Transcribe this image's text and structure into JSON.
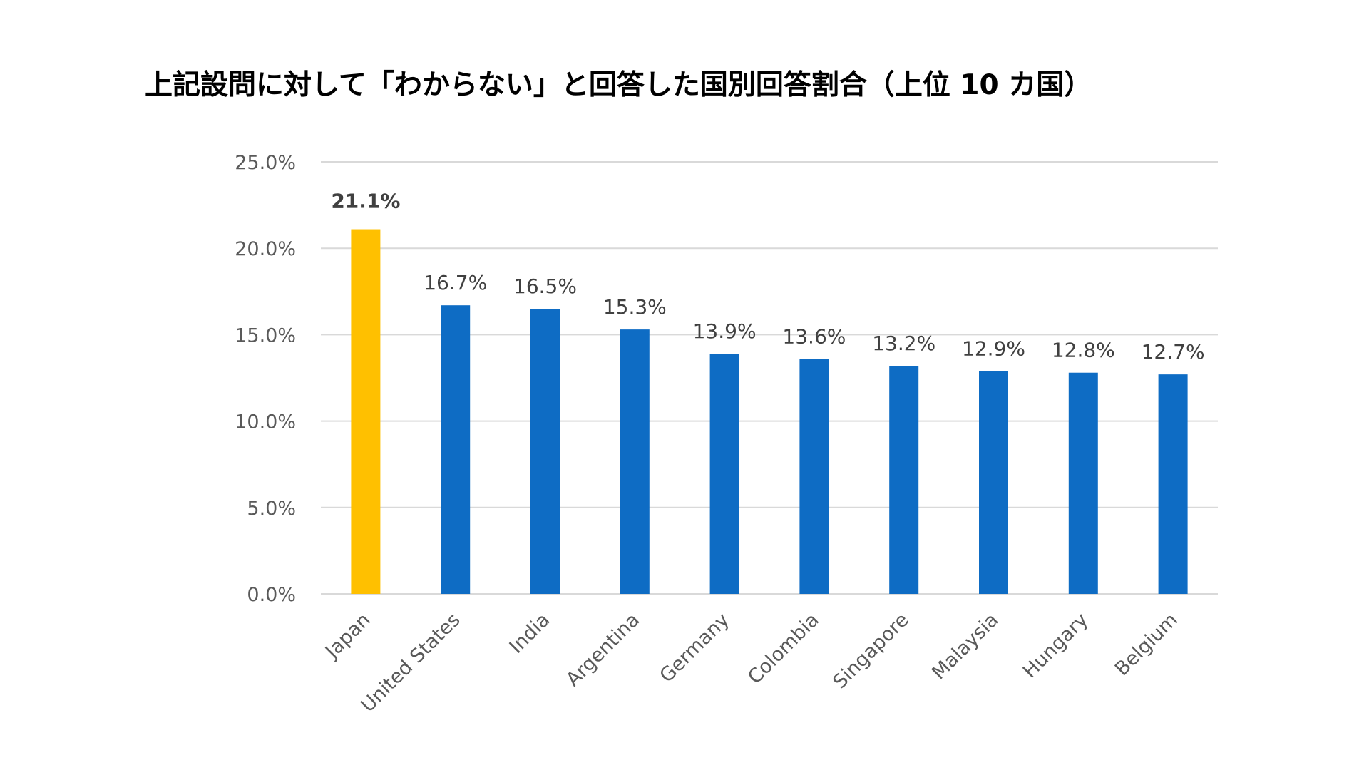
{
  "chart_data": {
    "type": "bar",
    "title": "上記設問に対して「わからない」と回答した国別回答割合（上位 10 カ国）",
    "categories": [
      "Japan",
      "United States",
      "India",
      "Argentina",
      "Germany",
      "Colombia",
      "Singapore",
      "Malaysia",
      "Hungary",
      "Belgium"
    ],
    "values": [
      21.1,
      16.7,
      16.5,
      15.3,
      13.9,
      13.6,
      13.2,
      12.9,
      12.8,
      12.7
    ],
    "value_labels": [
      "21.1%",
      "16.7%",
      "16.5%",
      "15.3%",
      "13.9%",
      "13.6%",
      "13.2%",
      "12.9%",
      "12.8%",
      "12.7%"
    ],
    "y_ticks": [
      0,
      5,
      10,
      15,
      20,
      25
    ],
    "y_tick_labels": [
      "0.0%",
      "5.0%",
      "10.0%",
      "15.0%",
      "20.0%",
      "25.0%"
    ],
    "ylim": [
      0,
      25
    ],
    "xlabel": "",
    "ylabel": "",
    "grid": "horizontal",
    "legend": "none",
    "colors": {
      "default_bar": "#0E6CC4",
      "highlight_bar": "#FFC000",
      "highlight_label": "#E00000",
      "grid": "#D9D9D9",
      "text": "#595959"
    },
    "highlight_category": "Japan"
  }
}
